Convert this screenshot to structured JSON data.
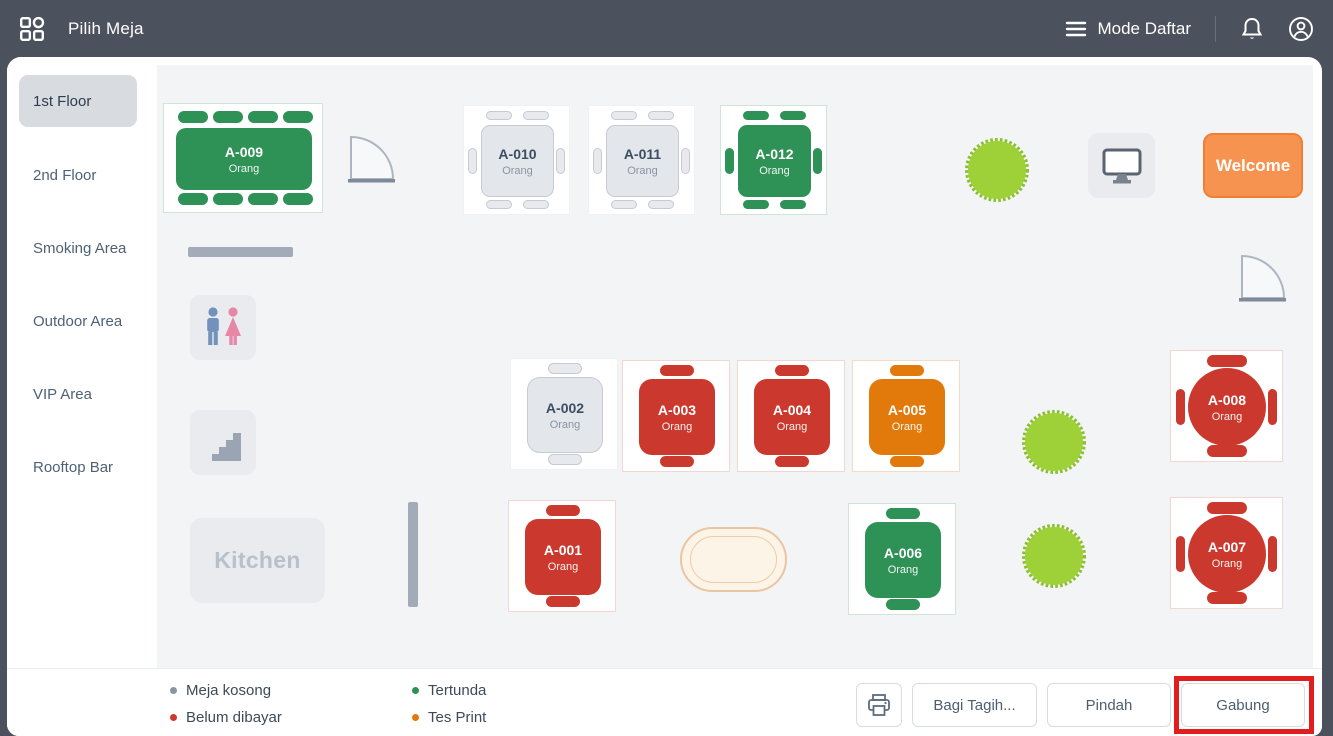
{
  "header": {
    "title": "Pilih Meja",
    "mode_label": "Mode Daftar"
  },
  "sidebar": {
    "items": [
      {
        "label": "1st Floor",
        "active": true
      },
      {
        "label": "2nd Floor",
        "active": false
      },
      {
        "label": "Smoking Area",
        "active": false
      },
      {
        "label": "Outdoor Area",
        "active": false
      },
      {
        "label": "VIP Area",
        "active": false
      },
      {
        "label": "Rooftop Bar",
        "active": false
      }
    ]
  },
  "canvas": {
    "tables": [
      {
        "id": "A-001",
        "sub": "Orang",
        "status": "red",
        "shape": "square-2-seat"
      },
      {
        "id": "A-002",
        "sub": "Orang",
        "status": "gray",
        "shape": "square-2-seat"
      },
      {
        "id": "A-003",
        "sub": "Orang",
        "status": "red",
        "shape": "square-2-seat"
      },
      {
        "id": "A-004",
        "sub": "Orang",
        "status": "red",
        "shape": "square-2-seat"
      },
      {
        "id": "A-005",
        "sub": "Orang",
        "status": "orange",
        "shape": "square-2-seat"
      },
      {
        "id": "A-006",
        "sub": "Orang",
        "status": "green",
        "shape": "square-2-seat"
      },
      {
        "id": "A-007",
        "sub": "Orang",
        "status": "red",
        "shape": "round-4-seat"
      },
      {
        "id": "A-008",
        "sub": "Orang",
        "status": "red",
        "shape": "round-4-seat"
      },
      {
        "id": "A-009",
        "sub": "Orang",
        "status": "green",
        "shape": "rect-8-seat"
      },
      {
        "id": "A-010",
        "sub": "Orang",
        "status": "gray",
        "shape": "square-6-seat"
      },
      {
        "id": "A-011",
        "sub": "Orang",
        "status": "gray",
        "shape": "square-6-seat"
      },
      {
        "id": "A-012",
        "sub": "Orang",
        "status": "green",
        "shape": "square-6-seat"
      }
    ],
    "labels": {
      "kitchen": "Kitchen",
      "welcome": "Welcome"
    }
  },
  "legend": [
    {
      "label": "Meja kosong",
      "color": "#8a94a2"
    },
    {
      "label": "Belum dibayar",
      "color": "#cb392e"
    },
    {
      "label": "Tertunda",
      "color": "#2e9156"
    },
    {
      "label": "Tes Print",
      "color": "#e2790b"
    }
  ],
  "actions": {
    "split_bill": "Bagi Tagih...",
    "move": "Pindah",
    "merge": "Gabung"
  },
  "colors": {
    "header_bg": "#4b515d",
    "canvas_bg": "#f2f4f6",
    "table_empty": "#e3e6ea",
    "table_unpaid": "#cb392e",
    "table_pending": "#2e9156",
    "table_test_print": "#e2790b",
    "plant": "#9ed138",
    "welcome_sign": "#f79350",
    "annotation": "#e21d1d"
  }
}
